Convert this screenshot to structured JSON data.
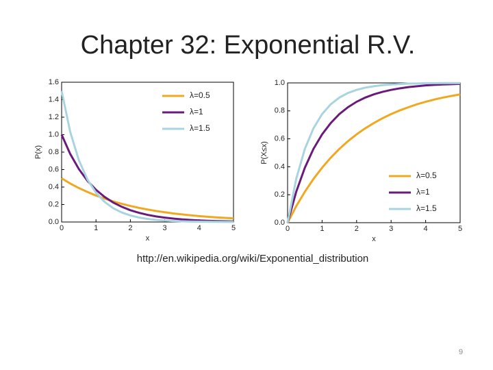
{
  "title": "Chapter 32: Exponential R.V.",
  "caption": "http://en.wikipedia.org/wiki/Exponential_distribution",
  "page_number": "9",
  "chart_data": [
    {
      "type": "line",
      "xlabel": "x",
      "ylabel": "P(x)",
      "legend": "upper right",
      "xlim": [
        0,
        5
      ],
      "ylim": [
        0,
        1.6
      ],
      "xticks": [
        0,
        1,
        2,
        3,
        4,
        5
      ],
      "yticks": [
        {
          "value": 0,
          "label": "0.0"
        },
        0.2,
        0.4,
        0.6,
        0.8,
        {
          "value": 1,
          "label": "1.0"
        },
        1.2,
        1.4,
        1.6
      ],
      "x": [
        0,
        0.25,
        0.5,
        0.75,
        1,
        1.25,
        1.5,
        1.75,
        2,
        2.25,
        2.5,
        2.75,
        3,
        3.25,
        3.5,
        3.75,
        4,
        4.25,
        4.5,
        4.75,
        5
      ],
      "series": [
        {
          "name": "λ=0.5",
          "color": "#f0a820",
          "values": [
            0.5,
            0.441,
            0.389,
            0.344,
            0.303,
            0.268,
            0.236,
            0.208,
            0.184,
            0.162,
            0.143,
            0.126,
            0.112,
            0.098,
            0.087,
            0.077,
            0.068,
            0.06,
            0.053,
            0.047,
            0.041
          ]
        },
        {
          "name": "λ=1",
          "color": "#6a1a7a",
          "values": [
            1,
            0.779,
            0.607,
            0.472,
            0.368,
            0.287,
            0.223,
            0.174,
            0.135,
            0.105,
            0.082,
            0.064,
            0.05,
            0.039,
            0.03,
            0.024,
            0.018,
            0.014,
            0.011,
            0.009,
            0.007
          ]
        },
        {
          "name": "λ=1.5",
          "color": "#a8d4e0",
          "values": [
            1.5,
            1.031,
            0.709,
            0.487,
            0.335,
            0.23,
            0.158,
            0.109,
            0.075,
            0.051,
            0.035,
            0.024,
            0.017,
            0.011,
            0.008,
            0.005,
            0.004,
            0.003,
            0.002,
            0.001,
            0.001
          ]
        }
      ]
    },
    {
      "type": "line",
      "xlabel": "x",
      "ylabel": "P(X≤x)",
      "legend": "lower right",
      "xlim": [
        0,
        5
      ],
      "ylim": [
        0,
        1
      ],
      "xticks": [
        0,
        1,
        2,
        3,
        4,
        5
      ],
      "yticks": [
        {
          "value": 0,
          "label": "0.0"
        },
        0.2,
        0.4,
        0.6,
        0.8,
        {
          "value": 1,
          "label": "1.0"
        }
      ],
      "x": [
        0,
        0.25,
        0.5,
        0.75,
        1,
        1.25,
        1.5,
        1.75,
        2,
        2.25,
        2.5,
        2.75,
        3,
        3.25,
        3.5,
        3.75,
        4,
        4.25,
        4.5,
        4.75,
        5
      ],
      "series": [
        {
          "name": "λ=0.5",
          "color": "#f0a820",
          "values": [
            0,
            0.118,
            0.221,
            0.313,
            0.393,
            0.465,
            0.528,
            0.583,
            0.632,
            0.675,
            0.713,
            0.747,
            0.777,
            0.803,
            0.826,
            0.847,
            0.865,
            0.881,
            0.895,
            0.907,
            0.918
          ]
        },
        {
          "name": "λ=1",
          "color": "#6a1a7a",
          "values": [
            0,
            0.221,
            0.393,
            0.528,
            0.632,
            0.713,
            0.777,
            0.826,
            0.865,
            0.895,
            0.918,
            0.936,
            0.95,
            0.961,
            0.97,
            0.976,
            0.982,
            0.986,
            0.989,
            0.991,
            0.993
          ]
        },
        {
          "name": "λ=1.5",
          "color": "#a8d4e0",
          "values": [
            0,
            0.313,
            0.528,
            0.675,
            0.777,
            0.847,
            0.895,
            0.928,
            0.95,
            0.966,
            0.976,
            0.984,
            0.989,
            0.992,
            0.995,
            0.996,
            0.998,
            0.998,
            0.999,
            0.999,
            0.999
          ]
        }
      ]
    }
  ]
}
